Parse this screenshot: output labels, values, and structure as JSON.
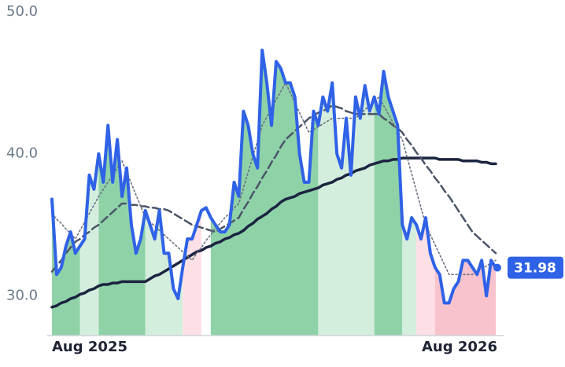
{
  "chart_data": {
    "type": "line",
    "categories": [
      "Aug 2025",
      null,
      null,
      null,
      null,
      null,
      null,
      null,
      null,
      null,
      null,
      null,
      null,
      null,
      null,
      null,
      null,
      null,
      null,
      null,
      null,
      null,
      null,
      null,
      null,
      null,
      null,
      null,
      null,
      null,
      null,
      null,
      null,
      null,
      null,
      null,
      null,
      null,
      null,
      null,
      null,
      null,
      null,
      null,
      null,
      null,
      null,
      null,
      null,
      null,
      null,
      null,
      null,
      null,
      null,
      null,
      null,
      null,
      null,
      null,
      null,
      null,
      null,
      null,
      null,
      null,
      null,
      null,
      null,
      null,
      null,
      null,
      null,
      null,
      null,
      null,
      null,
      null,
      null,
      null,
      null,
      null,
      null,
      null,
      null,
      null,
      null,
      null,
      null,
      null,
      null,
      null,
      null,
      null,
      null,
      "Aug 2026"
    ],
    "ylim": [
      27.2,
      50
    ],
    "yticks": [
      {
        "value": 30,
        "label": "30.0"
      },
      {
        "value": 40,
        "label": "40.0"
      },
      {
        "value": 50,
        "label": "50.0"
      }
    ],
    "zones": [
      {
        "from": 0,
        "to": 6,
        "color": "#8fd2a8"
      },
      {
        "from": 6,
        "to": 10,
        "color": "#d4eedd"
      },
      {
        "from": 10,
        "to": 20,
        "color": "#8fd2a8"
      },
      {
        "from": 20,
        "to": 28,
        "color": "#d4eedd"
      },
      {
        "from": 28,
        "to": 32,
        "color": "#fde0e6"
      },
      {
        "from": 34,
        "to": 57,
        "color": "#8fd2a8"
      },
      {
        "from": 57,
        "to": 69,
        "color": "#d4eedd"
      },
      {
        "from": 69,
        "to": 75,
        "color": "#8fd2a8"
      },
      {
        "from": 75,
        "to": 78,
        "color": "#d4eedd"
      },
      {
        "from": 78,
        "to": 82,
        "color": "#fde0e6"
      },
      {
        "from": 82,
        "to": 95,
        "color": "#f9c3cd"
      }
    ],
    "series": [
      {
        "color": "#1b2440",
        "width": 3.5,
        "dash": "solid",
        "values": [
          29.2,
          29.3,
          29.5,
          29.6,
          29.8,
          29.9,
          30.1,
          30.2,
          30.4,
          30.5,
          30.7,
          30.8,
          30.8,
          30.9,
          30.9,
          31.0,
          31.0,
          31.0,
          31.0,
          31.0,
          31.0,
          31.2,
          31.4,
          31.5,
          31.7,
          31.9,
          32.1,
          32.3,
          32.5,
          32.7,
          32.9,
          33.1,
          33.2,
          33.4,
          33.5,
          33.7,
          33.8,
          34.0,
          34.1,
          34.3,
          34.4,
          34.6,
          34.9,
          35.1,
          35.4,
          35.6,
          35.8,
          36.1,
          36.3,
          36.6,
          36.8,
          36.9,
          37.0,
          37.2,
          37.3,
          37.4,
          37.5,
          37.6,
          37.8,
          37.9,
          38.0,
          38.2,
          38.3,
          38.5,
          38.6,
          38.8,
          38.9,
          39.0,
          39.2,
          39.3,
          39.4,
          39.5,
          39.5,
          39.6,
          39.6,
          39.7,
          39.7,
          39.7,
          39.7,
          39.7,
          39.7,
          39.7,
          39.7,
          39.6,
          39.6,
          39.6,
          39.6,
          39.6,
          39.5,
          39.5,
          39.5,
          39.5,
          39.4,
          39.4,
          39.3,
          39.3
        ]
      },
      {
        "color": "#4b5568",
        "width": 2.5,
        "dash": "dashed",
        "values": [
          31.7,
          32.1,
          32.5,
          33.0,
          33.4,
          33.8,
          34.0,
          34.3,
          34.5,
          34.8,
          35.0,
          35.3,
          35.6,
          35.9,
          36.2,
          36.5,
          36.5,
          36.4,
          36.4,
          36.3,
          36.3,
          36.2,
          36.2,
          36.1,
          36.1,
          36.0,
          35.8,
          35.6,
          35.4,
          35.2,
          35.0,
          34.9,
          34.8,
          34.7,
          34.6,
          34.5,
          34.7,
          34.9,
          35.1,
          35.3,
          35.5,
          36.1,
          36.6,
          37.2,
          37.7,
          38.3,
          38.8,
          39.4,
          39.9,
          40.5,
          41.0,
          41.3,
          41.6,
          41.9,
          42.2,
          42.5,
          42.7,
          42.9,
          43.0,
          43.2,
          43.4,
          43.3,
          43.2,
          43.0,
          42.9,
          42.8,
          42.8,
          42.8,
          42.8,
          42.8,
          42.8,
          42.5,
          42.3,
          42.0,
          41.8,
          41.5,
          41.0,
          40.6,
          40.1,
          39.7,
          39.2,
          38.8,
          38.3,
          37.9,
          37.4,
          37.0,
          36.5,
          36.0,
          35.5,
          35.0,
          34.5,
          34.2,
          33.9,
          33.6,
          33.3,
          33.0
        ]
      },
      {
        "color": "#6b7280",
        "width": 1.6,
        "dash": "dotted",
        "values": [
          35.8,
          35.4,
          35.1,
          34.7,
          34.4,
          34.0,
          34.6,
          35.2,
          35.8,
          36.4,
          37.0,
          37.5,
          38.0,
          38.5,
          39.0,
          39.5,
          38.7,
          37.9,
          37.1,
          36.3,
          35.5,
          35.2,
          34.9,
          34.6,
          34.3,
          34.0,
          33.7,
          33.4,
          33.1,
          32.8,
          32.5,
          33.0,
          33.4,
          33.9,
          34.3,
          34.8,
          35.1,
          35.5,
          35.8,
          36.2,
          36.5,
          37.6,
          38.7,
          39.8,
          40.9,
          42.0,
          42.6,
          43.2,
          43.8,
          44.4,
          45.0,
          44.3,
          43.6,
          42.9,
          42.2,
          41.5,
          41.7,
          41.9,
          42.1,
          42.3,
          42.5,
          42.5,
          42.5,
          42.5,
          42.5,
          42.5,
          42.8,
          43.1,
          43.4,
          43.7,
          44.0,
          43.4,
          42.8,
          42.2,
          41.6,
          41.0,
          39.8,
          38.6,
          37.4,
          36.2,
          35.0,
          34.3,
          33.6,
          32.9,
          32.2,
          31.5,
          31.5,
          31.5,
          31.5,
          31.5,
          31.5,
          31.7,
          31.9,
          32.1,
          32.3,
          32.5
        ]
      },
      {
        "color": "#2f62e6",
        "width": 4,
        "dash": "solid",
        "values": [
          36.8,
          31.5,
          32,
          33.5,
          34.5,
          33,
          33.5,
          34,
          38.5,
          37.5,
          40,
          38,
          42,
          38,
          41,
          37,
          39,
          35,
          33,
          34,
          36,
          35,
          34,
          36,
          33,
          33,
          30.5,
          29.8,
          32,
          34,
          34,
          35,
          36,
          36.2,
          35.5,
          35,
          34.5,
          34.5,
          35,
          38,
          37,
          43,
          42,
          40,
          39,
          47.3,
          45,
          42,
          46.5,
          46,
          45,
          45,
          44,
          40,
          38,
          38,
          43,
          42,
          44,
          43,
          45,
          40,
          39,
          42.5,
          38.5,
          44,
          42.5,
          44.8,
          43,
          44,
          42.8,
          45.8,
          44,
          43,
          42,
          35,
          34,
          35.5,
          35,
          34,
          35.5,
          33,
          32,
          31.5,
          29.5,
          29.5,
          30.5,
          31,
          32.5,
          32.5,
          32,
          31.5,
          32.5,
          30,
          32.5,
          31.98
        ]
      }
    ]
  }
}
